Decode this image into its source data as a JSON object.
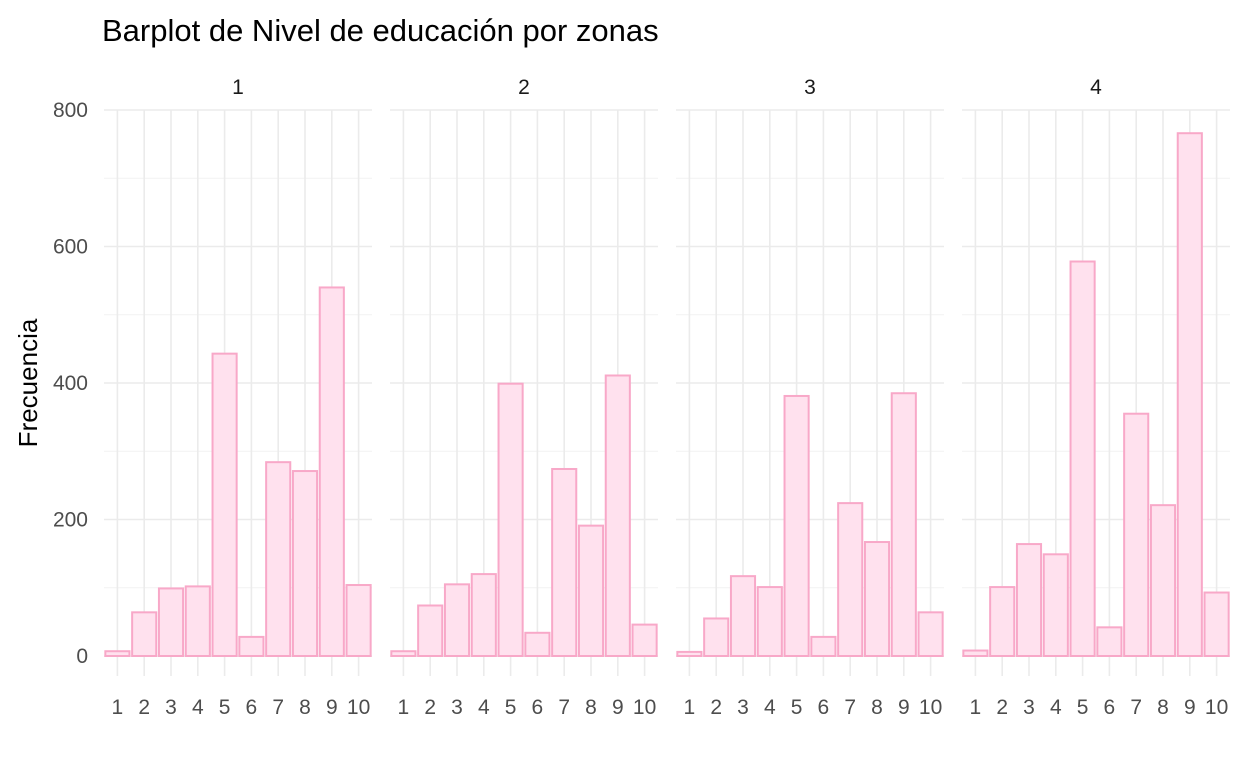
{
  "chart_data": {
    "type": "bar",
    "title": "Barplot de Nivel de educación por zonas",
    "xlabel": "",
    "ylabel": "Frecuencia",
    "ylim": [
      0,
      800
    ],
    "yticks": [
      0,
      200,
      400,
      600,
      800
    ],
    "categories": [
      "1",
      "2",
      "3",
      "4",
      "5",
      "6",
      "7",
      "8",
      "9",
      "10"
    ],
    "facets": [
      {
        "label": "1",
        "values": [
          7,
          64,
          99,
          102,
          443,
          28,
          284,
          271,
          540,
          104
        ]
      },
      {
        "label": "2",
        "values": [
          7,
          74,
          105,
          120,
          399,
          34,
          274,
          191,
          411,
          46
        ]
      },
      {
        "label": "3",
        "values": [
          6,
          55,
          117,
          101,
          381,
          28,
          224,
          167,
          385,
          64
        ]
      },
      {
        "label": "4",
        "values": [
          8,
          101,
          164,
          149,
          578,
          42,
          355,
          221,
          766,
          93
        ]
      }
    ],
    "colors": {
      "fill": "#ffe1ee",
      "stroke": "#f8a8c8",
      "grid": "#ebebeb"
    }
  }
}
